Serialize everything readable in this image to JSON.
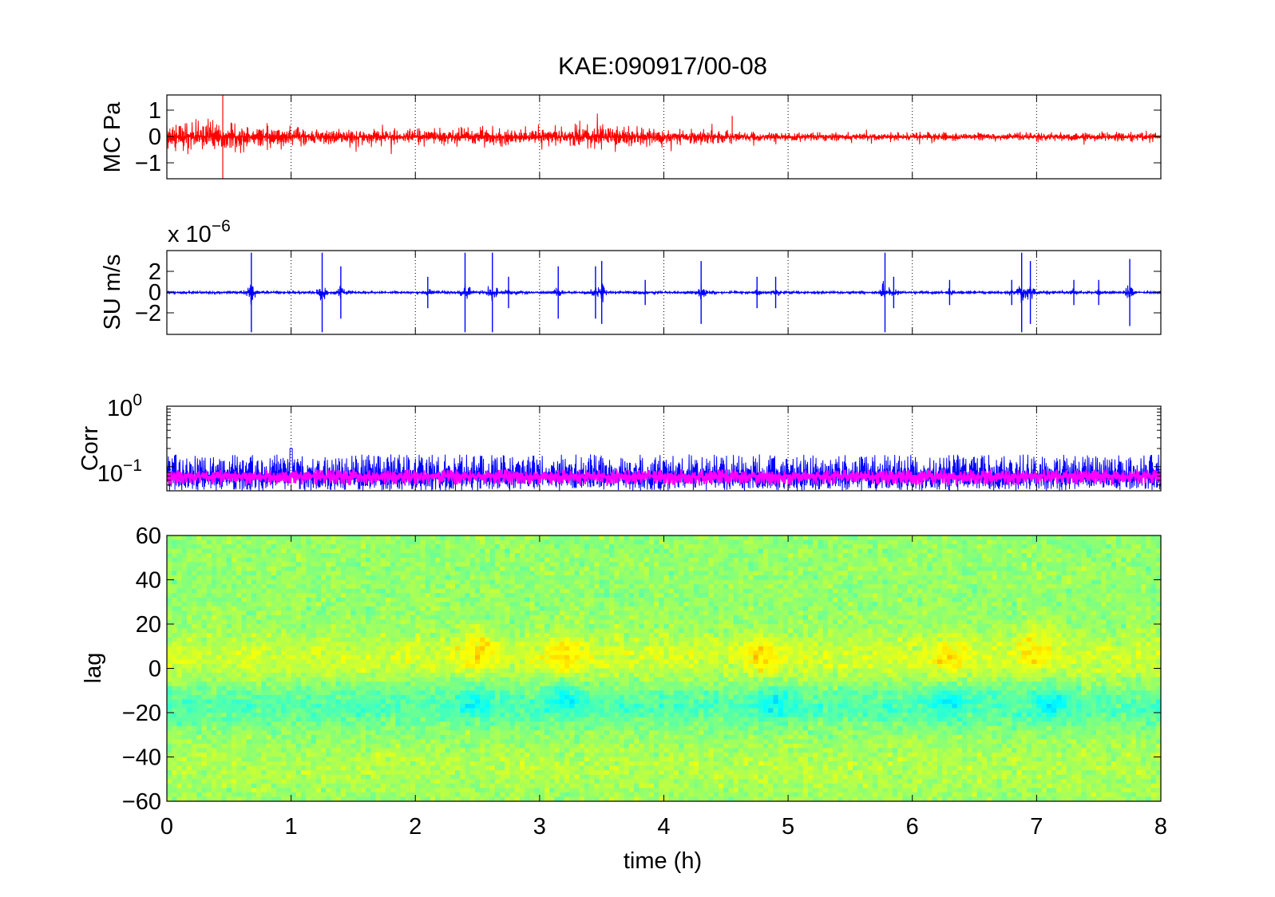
{
  "title": "KAE:090917/00-08",
  "xlabel": "time (h)",
  "x_ticks": [
    "0",
    "1",
    "2",
    "3",
    "4",
    "5",
    "6",
    "7",
    "8"
  ],
  "panels": {
    "mc": {
      "ylabel": "MC Pa",
      "ticks": [
        "1",
        "0",
        "−1"
      ]
    },
    "su": {
      "ylabel": "SU m/s",
      "ticks": [
        "2",
        "0",
        "−2"
      ],
      "exp_base": "x 10",
      "exp_power": "−6"
    },
    "corr": {
      "ylabel": "Corr",
      "ticks": [
        {
          "base": "10",
          "exp": "0"
        },
        {
          "base": "10",
          "exp": "−1"
        }
      ]
    },
    "lag": {
      "ylabel": "lag",
      "ticks": [
        "60",
        "40",
        "20",
        "0",
        "−20",
        "−40",
        "−60"
      ]
    }
  },
  "colors": {
    "mc": "#ff0000",
    "su": "#0000ff",
    "corr_raw": "#0000ff",
    "corr_smooth": "#ff00ff"
  },
  "chart_data": [
    {
      "type": "line",
      "name": "MC",
      "xlim": [
        0,
        8
      ],
      "ylim": [
        -1.6,
        1.6
      ],
      "grid": "vertical dotted",
      "envelope": {
        "x": [
          0,
          0.5,
          1,
          1.5,
          2,
          2.5,
          3,
          3.5,
          4,
          4.5,
          4.6,
          5,
          6,
          7,
          8
        ],
        "amplitude": [
          0.6,
          0.6,
          0.35,
          0.3,
          0.28,
          0.35,
          0.35,
          0.45,
          0.3,
          0.28,
          0.2,
          0.17,
          0.15,
          0.17,
          0.17
        ]
      },
      "spikes": [
        {
          "x": 0.45,
          "y": 1.6
        },
        {
          "x": 0.45,
          "y": -1.6
        },
        {
          "x": 4.55,
          "y": 0.8
        }
      ]
    },
    {
      "type": "line",
      "name": "SU",
      "xlim": [
        0,
        8
      ],
      "ylim": [
        -4,
        4
      ],
      "y_scale_factor": 1e-06,
      "grid": "vertical dotted",
      "baseline_amplitude": 0.15,
      "spikes": [
        {
          "x": 0.68,
          "a": 3.8
        },
        {
          "x": 1.25,
          "a": 3.8
        },
        {
          "x": 1.4,
          "a": 2.5
        },
        {
          "x": 2.1,
          "a": 1.5
        },
        {
          "x": 2.4,
          "a": 3.8
        },
        {
          "x": 2.62,
          "a": 3.8
        },
        {
          "x": 2.75,
          "a": 1.5
        },
        {
          "x": 3.15,
          "a": 2.5
        },
        {
          "x": 3.45,
          "a": 2.5
        },
        {
          "x": 3.5,
          "a": 3.0
        },
        {
          "x": 3.85,
          "a": 1.2
        },
        {
          "x": 4.3,
          "a": 3.0
        },
        {
          "x": 4.75,
          "a": 1.5
        },
        {
          "x": 4.9,
          "a": 1.5
        },
        {
          "x": 5.78,
          "a": 3.8
        },
        {
          "x": 5.85,
          "a": 1.5
        },
        {
          "x": 6.3,
          "a": 1.2
        },
        {
          "x": 6.8,
          "a": 1.2
        },
        {
          "x": 6.88,
          "a": 3.8
        },
        {
          "x": 6.95,
          "a": 3.0
        },
        {
          "x": 7.3,
          "a": 1.2
        },
        {
          "x": 7.5,
          "a": 1.2
        },
        {
          "x": 7.75,
          "a": 3.2
        }
      ]
    },
    {
      "type": "line",
      "name": "Corr",
      "xlim": [
        0,
        8
      ],
      "ylim": [
        0.04,
        1
      ],
      "yscale": "log",
      "grid": "vertical dotted",
      "series": [
        {
          "level": 0.07,
          "spread_min": 0.04,
          "spread_max": 0.16,
          "color": "#0000ff"
        },
        {
          "level": 0.07,
          "spread_min": 0.05,
          "spread_max": 0.09,
          "color": "#ff00ff"
        }
      ],
      "peak": {
        "x": 1.0,
        "y": 0.2
      }
    },
    {
      "type": "heatmap",
      "name": "lag",
      "xlim": [
        0,
        8
      ],
      "ylim": [
        -60,
        60
      ],
      "colormap": "jet",
      "pattern": "positive correlation band around lag 0 to 10, negative band around lag -10 to -25",
      "hot_spots": [
        {
          "x": 2.5,
          "lag": 8
        },
        {
          "x": 3.2,
          "lag": 5
        },
        {
          "x": 4.8,
          "lag": 6
        },
        {
          "x": 6.3,
          "lag": 5
        },
        {
          "x": 7.0,
          "lag": 10
        }
      ],
      "cold_spots": [
        {
          "x": 2.5,
          "lag": -14
        },
        {
          "x": 3.2,
          "lag": -12
        },
        {
          "x": 4.9,
          "lag": -14
        },
        {
          "x": 6.3,
          "lag": -14
        },
        {
          "x": 7.1,
          "lag": -16
        }
      ]
    }
  ]
}
